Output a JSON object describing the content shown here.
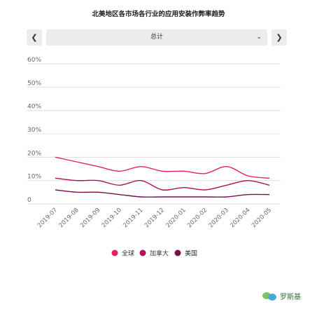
{
  "colors": {
    "global": "#e91e63",
    "canada": "#b0125a",
    "usa": "#7a1050",
    "gridline": "#d9d9d9",
    "axis_text": "#666666"
  },
  "controls": {
    "prev_icon": "chevron-left-icon",
    "next_icon": "chevron-right-icon",
    "selected_option": "总计"
  },
  "watermark": {
    "text": "罗斯基"
  },
  "chart_data": {
    "type": "line",
    "title": "北美地区各市场各行业的应用安装作弊率趋势",
    "x": [
      "2019-07",
      "2019-08",
      "2019-09",
      "2019-10",
      "2019-11",
      "2019-12",
      "2020-01",
      "2020-02",
      "2020-03",
      "2020-04",
      "2020-05"
    ],
    "y_ticks": [
      "0",
      "10%",
      "20%",
      "30%",
      "40%",
      "50%",
      "60%"
    ],
    "ylim": [
      0,
      60
    ],
    "grid": true,
    "legend_position": "bottom",
    "series": [
      {
        "name": "全球",
        "color_key": "global",
        "values": [
          20,
          18,
          16,
          14,
          16,
          14,
          14,
          13,
          16,
          12,
          11
        ]
      },
      {
        "name": "加拿大",
        "color_key": "canada",
        "values": [
          11,
          10,
          10,
          8,
          10,
          6,
          7,
          6,
          8,
          10,
          8
        ]
      },
      {
        "name": "美国",
        "color_key": "usa",
        "values": [
          6,
          5,
          5,
          4,
          3,
          3,
          3,
          3,
          3,
          4,
          4
        ]
      }
    ]
  }
}
